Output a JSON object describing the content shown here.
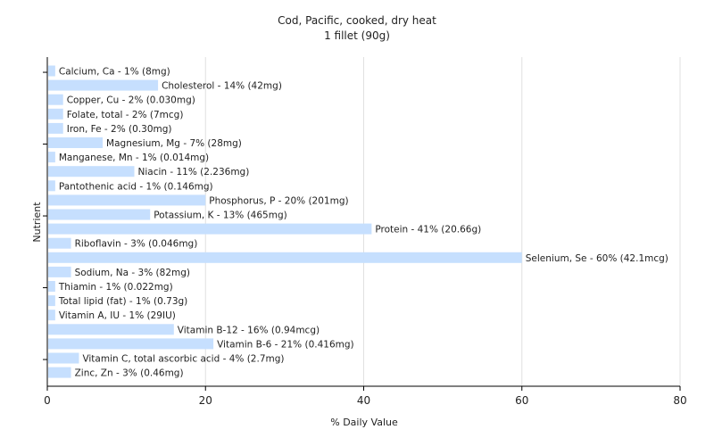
{
  "chart_data": {
    "type": "bar",
    "orientation": "horizontal",
    "title": "Cod, Pacific, cooked, dry heat",
    "subtitle": "1 fillet (90g)",
    "xlabel": "% Daily Value",
    "ylabel": "Nutrient",
    "xlim": [
      0,
      80
    ],
    "xticks": [
      0,
      20,
      40,
      60,
      80
    ],
    "grid": true,
    "bar_color": "#c6dffe",
    "categories": [
      "Calcium, Ca",
      "Cholesterol",
      "Copper, Cu",
      "Folate, total",
      "Iron, Fe",
      "Magnesium, Mg",
      "Manganese, Mn",
      "Niacin",
      "Pantothenic acid",
      "Phosphorus, P",
      "Potassium, K",
      "Protein",
      "Riboflavin",
      "Selenium, Se",
      "Sodium, Na",
      "Thiamin",
      "Total lipid (fat)",
      "Vitamin A, IU",
      "Vitamin B-12",
      "Vitamin B-6",
      "Vitamin C, total ascorbic acid",
      "Zinc, Zn"
    ],
    "values": [
      1,
      14,
      2,
      2,
      2,
      7,
      1,
      11,
      1,
      20,
      13,
      41,
      3,
      60,
      3,
      1,
      1,
      1,
      16,
      21,
      4,
      3
    ],
    "labels": [
      "Calcium, Ca - 1% (8mg)",
      "Cholesterol - 14% (42mg)",
      "Copper, Cu - 2% (0.030mg)",
      "Folate, total - 2% (7mcg)",
      "Iron, Fe - 2% (0.30mg)",
      "Magnesium, Mg - 7% (28mg)",
      "Manganese, Mn - 1% (0.014mg)",
      "Niacin - 11% (2.236mg)",
      "Pantothenic acid - 1% (0.146mg)",
      "Phosphorus, P - 20% (201mg)",
      "Potassium, K - 13% (465mg)",
      "Protein - 41% (20.66g)",
      "Riboflavin - 3% (0.046mg)",
      "Selenium, Se - 60% (42.1mcg)",
      "Sodium, Na - 3% (82mg)",
      "Thiamin - 1% (0.022mg)",
      "Total lipid (fat) - 1% (0.73g)",
      "Vitamin A, IU - 1% (29IU)",
      "Vitamin B-12 - 16% (0.94mcg)",
      "Vitamin B-6 - 21% (0.416mg)",
      "Vitamin C, total ascorbic acid - 4% (2.7mg)",
      "Zinc, Zn - 3% (0.46mg)"
    ]
  }
}
